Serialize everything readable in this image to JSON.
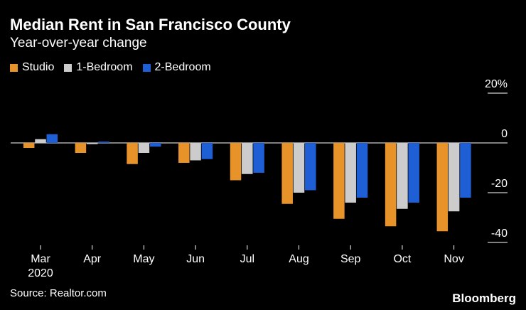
{
  "header": {
    "title": "Median Rent in San Francisco County",
    "subtitle": "Year-over-year change"
  },
  "footer": {
    "source": "Source: Realtor.com",
    "brand": "Bloomberg"
  },
  "colors": {
    "studio": "#E8922A",
    "one_bedroom": "#CCCCCC",
    "two_bedroom": "#1F5FD6",
    "axis": "#FFFFFF",
    "background": "#000000"
  },
  "chart_data": {
    "type": "bar",
    "title": "Median Rent in San Francisco County",
    "subtitle": "Year-over-year change",
    "categories": [
      "Mar",
      "Apr",
      "May",
      "Jun",
      "Jul",
      "Aug",
      "Sep",
      "Oct",
      "Nov"
    ],
    "category_sublabels": [
      "2020",
      "",
      "",
      "",
      "",
      "",
      "",
      "",
      ""
    ],
    "series": [
      {
        "name": "Studio",
        "values": [
          -2,
          -4,
          -8.5,
          -8,
          -15,
          -24.5,
          -30.5,
          -33.5,
          -35.5
        ]
      },
      {
        "name": "1-Bedroom",
        "values": [
          1.5,
          -0.5,
          -4,
          -7,
          -12.5,
          -20,
          -24,
          -26.5,
          -27.5
        ]
      },
      {
        "name": "2-Bedroom",
        "values": [
          3.5,
          0.5,
          -1.5,
          -6.5,
          -12,
          -19,
          -22,
          -24,
          -22
        ]
      }
    ],
    "ylim": [
      -40,
      20
    ],
    "yticks": [
      20,
      0,
      -20,
      -40
    ],
    "ytick_labels": [
      "20%",
      "0",
      "-20",
      "-40"
    ],
    "xlabel": "",
    "ylabel": "",
    "legend_position": "top-left",
    "grid": false
  }
}
